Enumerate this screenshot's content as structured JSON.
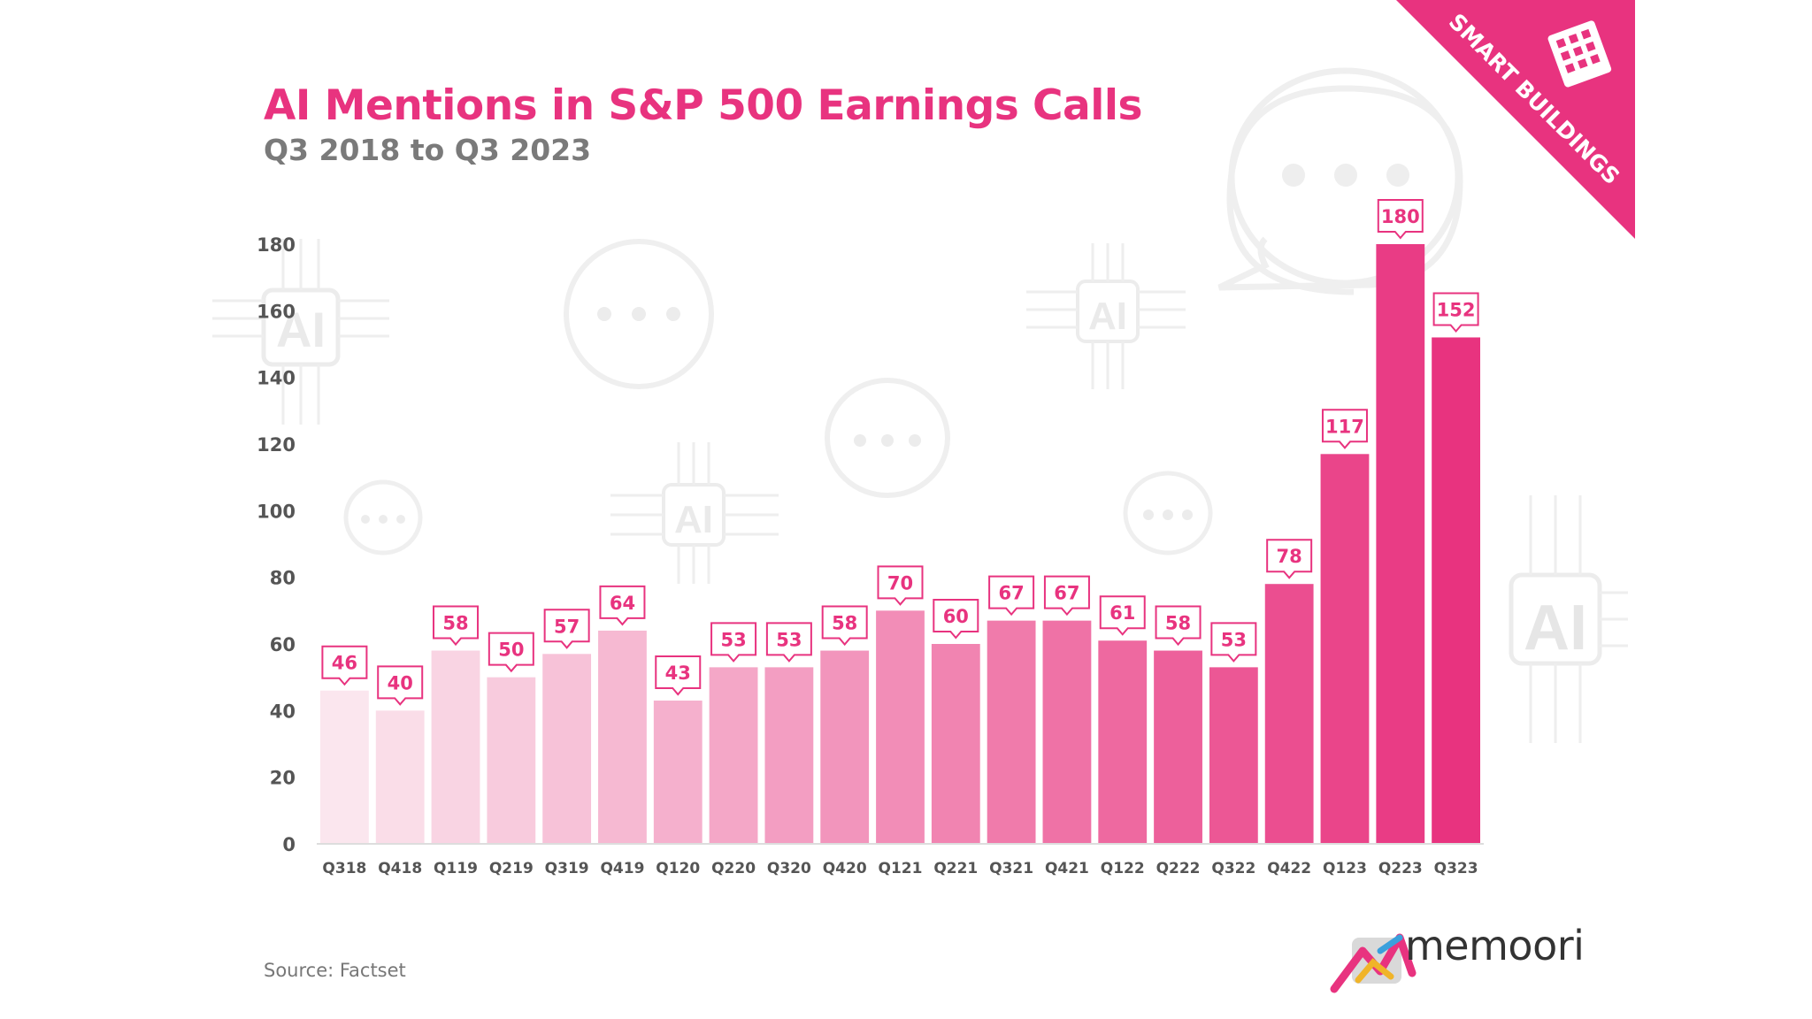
{
  "title": "AI Mentions in S&P 500 Earnings Calls",
  "subtitle": "Q3 2018 to Q3 2023",
  "source": "Source: Factset",
  "brand": {
    "name": "memoori",
    "ribbon_label": "SMART BUILDINGS",
    "color": "#e8337f"
  },
  "watermark_icons": {
    "chip_label": "AI",
    "bubble_text": "•••"
  },
  "chart_data": {
    "type": "bar",
    "title": "AI Mentions in S&P 500 Earnings Calls",
    "subtitle": "Q3 2018 to Q3 2023",
    "xlabel": "",
    "ylabel": "",
    "ylim": [
      0,
      180
    ],
    "yticks": [
      0,
      20,
      40,
      60,
      80,
      100,
      120,
      140,
      160,
      180
    ],
    "grid": false,
    "legend": "none",
    "categories": [
      "Q318",
      "Q418",
      "Q119",
      "Q219",
      "Q319",
      "Q419",
      "Q120",
      "Q220",
      "Q320",
      "Q420",
      "Q121",
      "Q221",
      "Q321",
      "Q421",
      "Q122",
      "Q222",
      "Q322",
      "Q422",
      "Q123",
      "Q223",
      "Q323"
    ],
    "values": [
      46,
      40,
      58,
      50,
      57,
      64,
      43,
      53,
      53,
      58,
      70,
      60,
      67,
      67,
      61,
      58,
      53,
      78,
      117,
      180,
      152
    ],
    "color_start": "#fbe6ee",
    "color_end": "#e8337f",
    "label_color": "#e8337f"
  }
}
